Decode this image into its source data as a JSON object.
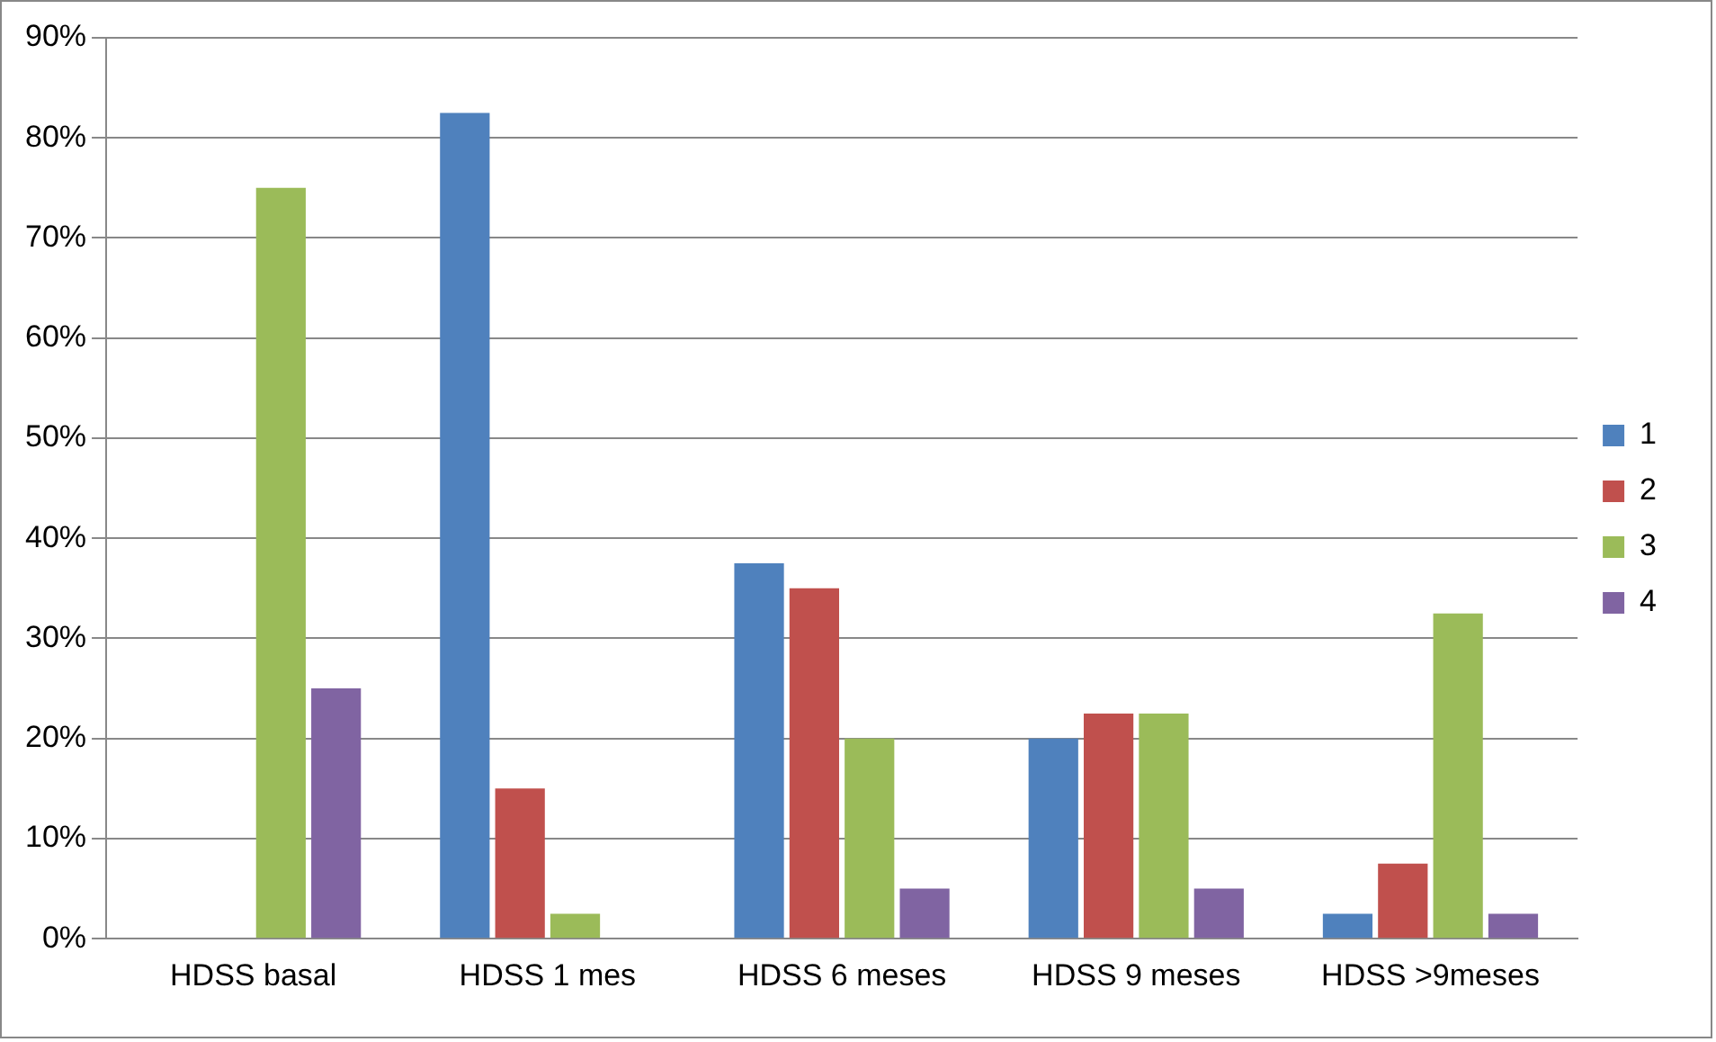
{
  "chart_data": {
    "type": "bar",
    "categories": [
      "HDSS basal",
      "HDSS 1 mes",
      "HDSS 6 meses",
      "HDSS 9 meses",
      "HDSS >9meses"
    ],
    "series": [
      {
        "name": "1",
        "color": "#4f81bd",
        "values": [
          0,
          82.5,
          37.5,
          20,
          2.5
        ]
      },
      {
        "name": "2",
        "color": "#c0504d",
        "values": [
          0,
          15,
          35,
          22.5,
          7.5
        ]
      },
      {
        "name": "3",
        "color": "#9bbb59",
        "values": [
          75,
          2.5,
          20,
          22.5,
          32.5
        ]
      },
      {
        "name": "4",
        "color": "#8064a2",
        "values": [
          25,
          0,
          5,
          5,
          2.5
        ]
      }
    ],
    "ylim": [
      0,
      90
    ],
    "yticks": [
      {
        "value": 0,
        "label": "0%"
      },
      {
        "value": 10,
        "label": "10%"
      },
      {
        "value": 20,
        "label": "20%"
      },
      {
        "value": 30,
        "label": "30%"
      },
      {
        "value": 40,
        "label": "40%"
      },
      {
        "value": 50,
        "label": "50%"
      },
      {
        "value": 60,
        "label": "60%"
      },
      {
        "value": 70,
        "label": "70%"
      },
      {
        "value": 80,
        "label": "80%"
      },
      {
        "value": 90,
        "label": "90%"
      }
    ],
    "grid": "y",
    "legend": "right"
  }
}
